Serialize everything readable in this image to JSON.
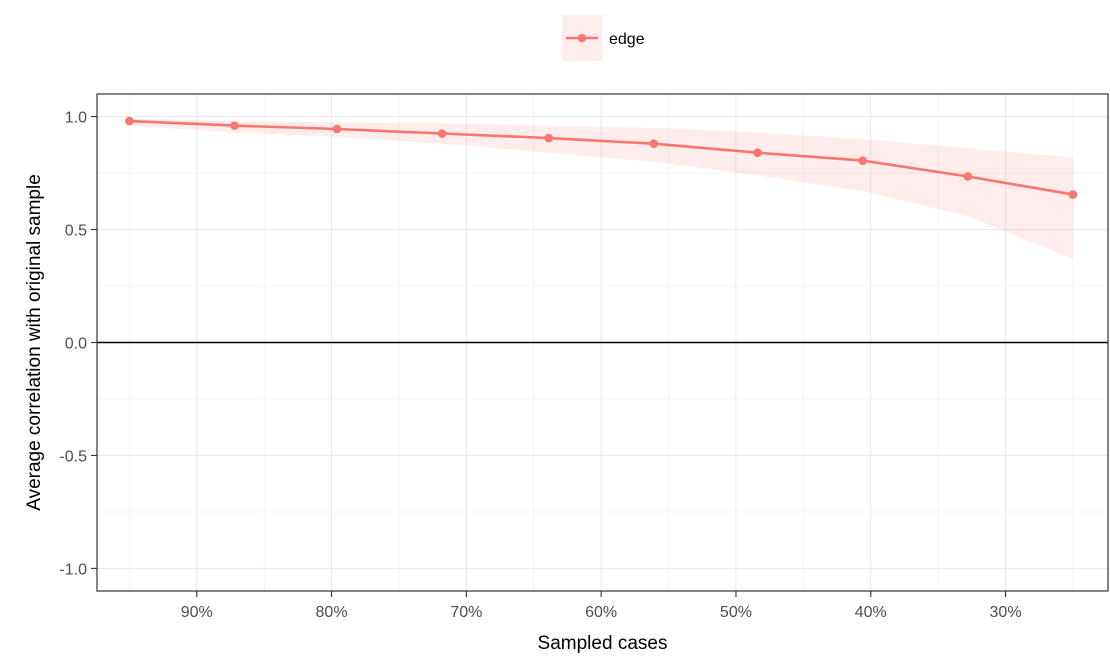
{
  "chart_data": {
    "type": "line",
    "xlabel": "Sampled cases",
    "ylabel": "Average correlation with original sample",
    "x_reversed": true,
    "xlim": [
      22.4,
      97.4
    ],
    "ylim": [
      -1.1,
      1.1
    ],
    "x_ticks": [
      90,
      80,
      70,
      60,
      50,
      40,
      30
    ],
    "x_tick_labels": [
      "90%",
      "80%",
      "70%",
      "60%",
      "50%",
      "40%",
      "30%"
    ],
    "y_ticks": [
      1.0,
      0.5,
      0.0,
      -0.5,
      -1.0
    ],
    "y_tick_labels": [
      "1.0",
      "0.5",
      "0.0",
      "-0.5",
      "-1.0"
    ],
    "reference_line_y": 0,
    "grid": true,
    "legend_position": "top",
    "series": [
      {
        "name": "edge",
        "color": "#F8766D",
        "ribbon_color": "#F8766D",
        "x": [
          95,
          87.2,
          79.6,
          71.8,
          63.9,
          56.1,
          48.4,
          40.6,
          32.8,
          25
        ],
        "y": [
          0.98,
          0.96,
          0.945,
          0.925,
          0.905,
          0.88,
          0.84,
          0.805,
          0.735,
          0.655
        ],
        "lower": [
          0.96,
          0.93,
          0.91,
          0.88,
          0.84,
          0.8,
          0.74,
          0.67,
          0.56,
          0.37
        ],
        "upper": [
          0.99,
          0.98,
          0.975,
          0.97,
          0.96,
          0.95,
          0.93,
          0.9,
          0.86,
          0.82
        ]
      }
    ]
  }
}
